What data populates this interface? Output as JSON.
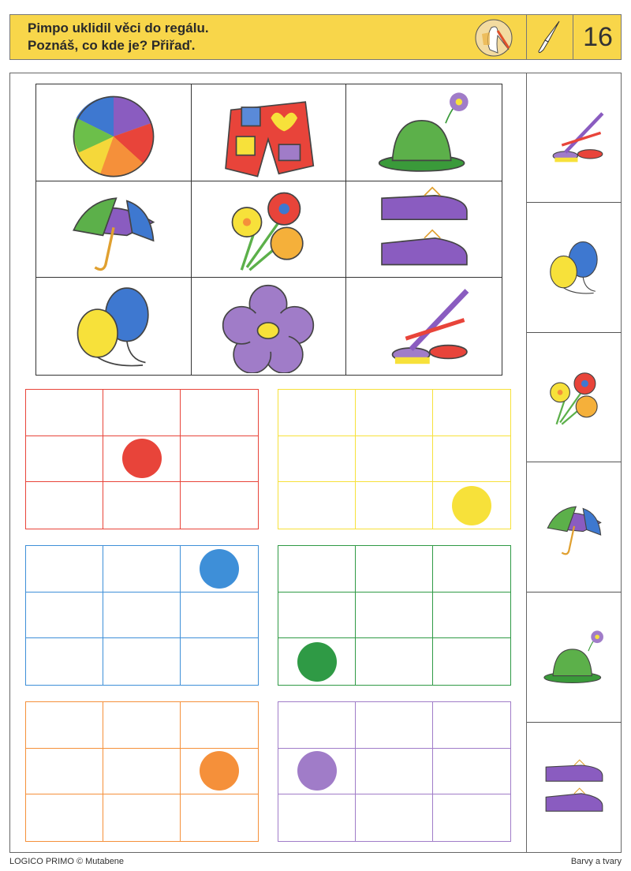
{
  "header": {
    "line1": "Pimpo uklidil věci do regálu.",
    "line2": "Poznáš, co kde je? Přiřaď.",
    "page_number": "16",
    "icons": [
      "stork-mascot-icon",
      "paintbrush-icon"
    ]
  },
  "picture_grid": [
    "ball",
    "shorts",
    "hat",
    "umbrella",
    "flowers",
    "shoes",
    "balloons",
    "flower",
    "paints"
  ],
  "color_grids": [
    {
      "color": "red",
      "hex": "#e8443a",
      "dot_row": 2,
      "dot_col": 2
    },
    {
      "color": "yellow",
      "hex": "#f7e13a",
      "dot_row": 3,
      "dot_col": 3
    },
    {
      "color": "blue",
      "hex": "#3e8fd8",
      "dot_row": 1,
      "dot_col": 3
    },
    {
      "color": "green",
      "hex": "#2f9a45",
      "dot_row": 3,
      "dot_col": 1
    },
    {
      "color": "orange",
      "hex": "#f5903a",
      "dot_row": 2,
      "dot_col": 3
    },
    {
      "color": "purple",
      "hex": "#a07cc8",
      "dot_row": 2,
      "dot_col": 1
    }
  ],
  "right_column": [
    "paints",
    "balloons",
    "flowers",
    "umbrella",
    "hat",
    "shoes"
  ],
  "footer": {
    "left": "LOGICO PRIMO © Mutabene",
    "right": "Barvy a tvary"
  }
}
